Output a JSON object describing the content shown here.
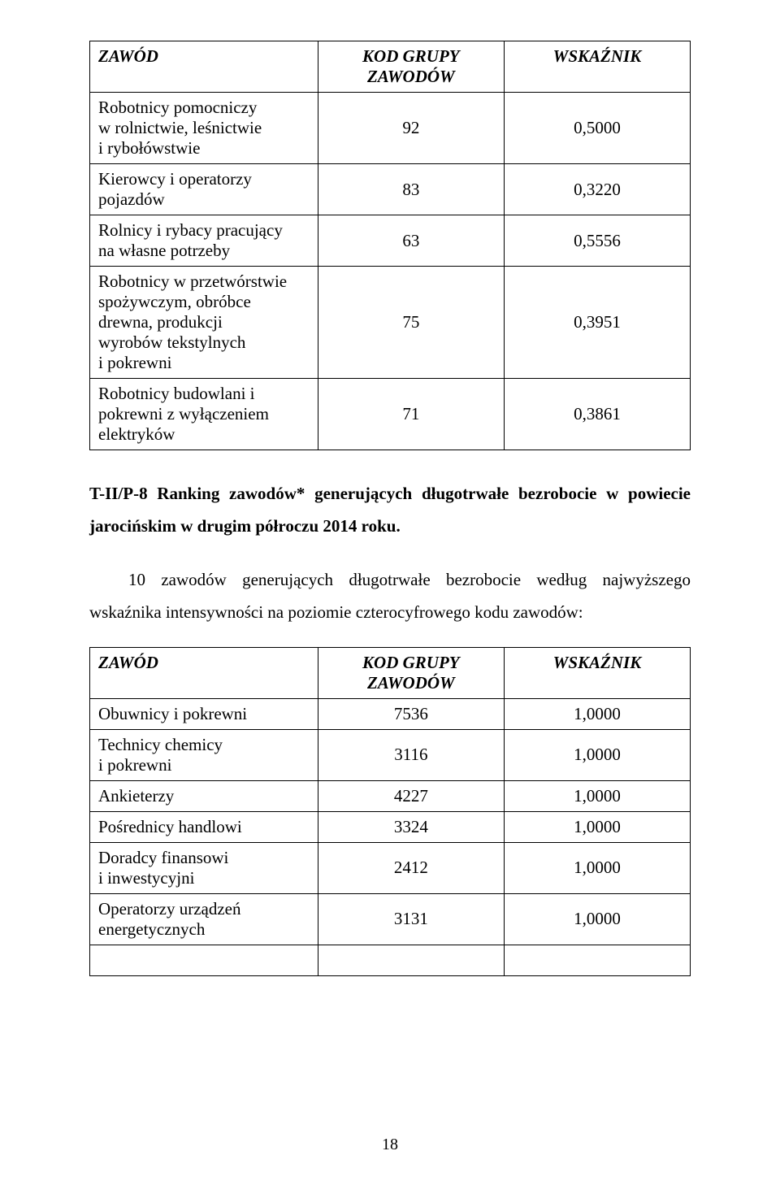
{
  "table1": {
    "headers": {
      "zawod": "ZAWÓD",
      "kod": "KOD GRUPY ZAWODÓW",
      "wsk": "WSKAŹNIK"
    },
    "rows": [
      {
        "zawod_l1": "Robotnicy pomocniczy",
        "zawod_l2": "w rolnictwie, leśnictwie",
        "zawod_l3": "i rybołówstwie",
        "kod": "92",
        "wsk": "0,5000"
      },
      {
        "zawod_l1": "Kierowcy i operatorzy",
        "zawod_l2": "pojazdów",
        "zawod_l3": "",
        "kod": "83",
        "wsk": "0,3220"
      },
      {
        "zawod_l1": "Rolnicy i rybacy pracujący",
        "zawod_l2": "na własne potrzeby",
        "zawod_l3": "",
        "kod": "63",
        "wsk": "0,5556"
      },
      {
        "zawod_l1": "Robotnicy w przetwórstwie",
        "zawod_l2": "spożywczym, obróbce",
        "zawod_l3": "drewna, produkcji",
        "zawod_l4": "wyrobów tekstylnych",
        "zawod_l5": "i pokrewni",
        "kod": "75",
        "wsk": "0,3951"
      },
      {
        "zawod_l1": "Robotnicy budowlani i",
        "zawod_l2": "pokrewni z wyłączeniem",
        "zawod_l3": "elektryków",
        "kod": "71",
        "wsk": "0,3861"
      }
    ]
  },
  "section": {
    "lead": "T-II/P-8 Ranking zawodów* generujących długotrwałe bezrobocie w powiecie jarocińskim w drugim półroczu 2014 roku.",
    "para": "10 zawodów generujących długotrwałe bezrobocie według najwyższego wskaźnika intensywności na poziomie czterocyfrowego kodu zawodów:"
  },
  "table2": {
    "headers": {
      "zawod": "ZAWÓD",
      "kod": "KOD GRUPY ZAWODÓW",
      "wsk": "WSKAŹNIK"
    },
    "rows": [
      {
        "zawod_l1": "Obuwnicy i pokrewni",
        "zawod_l2": "",
        "kod": "7536",
        "wsk": "1,0000"
      },
      {
        "zawod_l1": "Technicy chemicy",
        "zawod_l2": "i pokrewni",
        "kod": "3116",
        "wsk": "1,0000"
      },
      {
        "zawod_l1": "Ankieterzy",
        "zawod_l2": "",
        "kod": "4227",
        "wsk": "1,0000"
      },
      {
        "zawod_l1": "Pośrednicy handlowi",
        "zawod_l2": "",
        "kod": "3324",
        "wsk": "1,0000"
      },
      {
        "zawod_l1": "Doradcy finansowi",
        "zawod_l2": "i inwestycyjni",
        "kod": "2412",
        "wsk": "1,0000"
      },
      {
        "zawod_l1": "Operatorzy urządzeń",
        "zawod_l2": "energetycznych",
        "kod": "3131",
        "wsk": "1,0000"
      }
    ]
  },
  "pagenum": "18"
}
